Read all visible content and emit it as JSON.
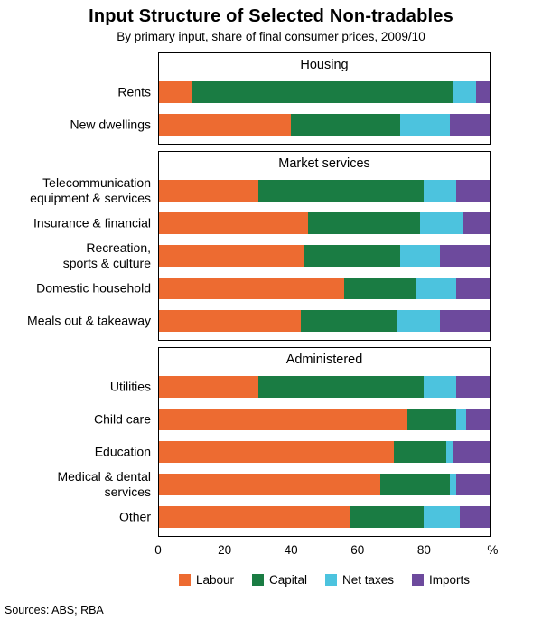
{
  "chart_data": {
    "type": "bar",
    "variant": "horizontal-stacked-100",
    "title": "Input Structure of Selected Non-tradables",
    "subtitle": "By primary input, share of final consumer prices, 2009/10",
    "x_axis": {
      "ticks": [
        0,
        20,
        40,
        60,
        80
      ],
      "max": 100,
      "unit_label": "%",
      "grid": false
    },
    "series": [
      {
        "name": "Labour",
        "color": "#ed6b31"
      },
      {
        "name": "Capital",
        "color": "#1a7c43"
      },
      {
        "name": "Net taxes",
        "color": "#4cc3de"
      },
      {
        "name": "Imports",
        "color": "#6d4a9d"
      }
    ],
    "panels": [
      {
        "header": "Housing",
        "rows": [
          {
            "label": "Rents",
            "values": [
              10,
              79,
              7,
              4
            ]
          },
          {
            "label": "New dwellings",
            "values": [
              40,
              33,
              15,
              12
            ]
          }
        ]
      },
      {
        "header": "Market services",
        "rows": [
          {
            "label": "Telecommunication\nequipment & services",
            "values": [
              30,
              50,
              10,
              10
            ]
          },
          {
            "label": "Insurance & financial",
            "values": [
              45,
              34,
              13,
              8
            ]
          },
          {
            "label": "Recreation,\nsports & culture",
            "values": [
              44,
              29,
              12,
              15
            ]
          },
          {
            "label": "Domestic household",
            "values": [
              56,
              22,
              12,
              10
            ]
          },
          {
            "label": "Meals out & takeaway",
            "values": [
              43,
              29,
              13,
              15
            ]
          }
        ]
      },
      {
        "header": "Administered",
        "rows": [
          {
            "label": "Utilities",
            "values": [
              30,
              50,
              10,
              10
            ]
          },
          {
            "label": "Child care",
            "values": [
              75,
              15,
              3,
              7
            ]
          },
          {
            "label": "Education",
            "values": [
              71,
              16,
              2,
              11
            ]
          },
          {
            "label": "Medical & dental\nservices",
            "values": [
              67,
              21,
              2,
              10
            ]
          },
          {
            "label": "Other",
            "values": [
              58,
              22,
              11,
              9
            ]
          }
        ]
      }
    ],
    "legend": {
      "position": "bottom",
      "labels": [
        "Labour",
        "Capital",
        "Net taxes",
        "Imports"
      ]
    },
    "sources": "Sources:  ABS; RBA"
  }
}
